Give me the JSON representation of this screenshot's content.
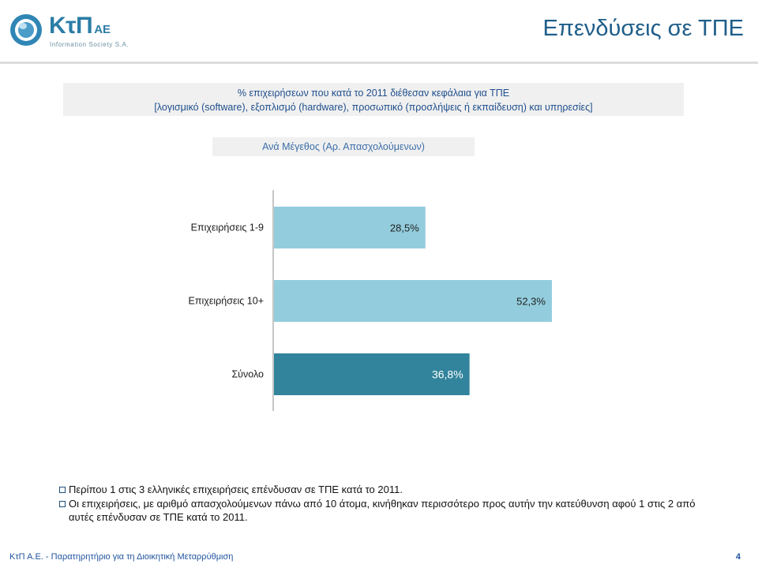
{
  "logo": {
    "brand": "ΚτΠ",
    "suffix": "ΑΕ",
    "tagline": "Information Society S.A.",
    "icon": "ktp-logo-icon"
  },
  "title": "Επενδύσεις σε ΤΠΕ",
  "header": {
    "line1": "%  επιχειρήσεων που κατά το 2011 διέθεσαν κεφάλαια για ΤΠΕ",
    "line2": "[λογισμικό (software), εξοπλισμό (hardware), προσωπικό (προσλήψεις ή εκπαίδευση) και υπηρεσίες]"
  },
  "chart_data": {
    "type": "bar",
    "orientation": "horizontal",
    "subtitle": "Ανά Μέγεθος (Αρ. Απασχολούμενων)",
    "categories": [
      "Επιχειρήσεις 1-9",
      "Επιχειρήσεις 10+",
      "Σύνολο"
    ],
    "values": [
      28.5,
      52.3,
      36.8
    ],
    "value_labels": [
      "28,5%",
      "52,3%",
      "36,8%"
    ],
    "colors": [
      "#93cddd",
      "#93cddd",
      "#31849b"
    ],
    "label_colors": [
      "#1f1f1f",
      "#1f1f1f",
      "#ffffff"
    ],
    "xlim": [
      0,
      100
    ],
    "grid": false,
    "legend": "none"
  },
  "notes": [
    "Περίπου 1 στις 3 ελληνικές επιχειρήσεις επένδυσαν σε ΤΠΕ κατά το 2011.",
    "Οι επιχειρήσεις, με αριθμό απασχολούμενων πάνω από 10 άτομα, κινήθηκαν περισσότερο προς αυτήν την κατεύθυνση αφού 1 στις 2 από αυτές επένδυσαν σε ΤΠΕ κατά το 2011."
  ],
  "footer": {
    "text": "ΚτΠ Α.Ε. - Παρατηρητήριο για τη Διοικητική Μεταρρύθμιση",
    "page": "4"
  },
  "colors": {
    "title": "#1f5e8a",
    "header_text": "#1e4e8c",
    "band_bg": "#f0f0f0",
    "footer_text": "#2255a0"
  }
}
